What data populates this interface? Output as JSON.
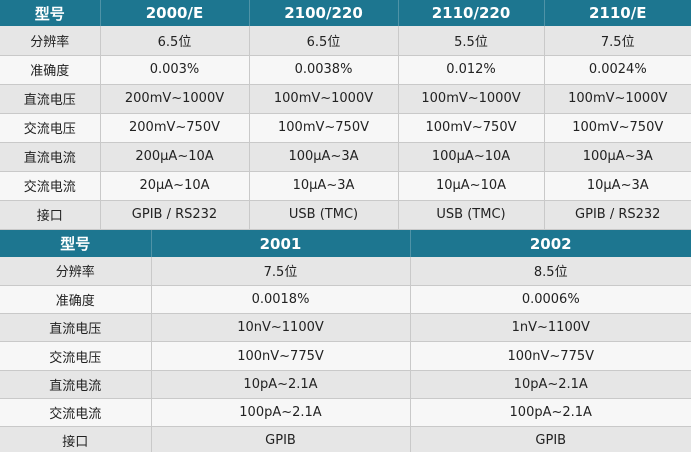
{
  "table1": {
    "headers": [
      "型号",
      "2000/E",
      "2100/220",
      "2110/220",
      "2110/E"
    ],
    "rows": [
      [
        "分辨率",
        "6.5位",
        "6.5位",
        "5.5位",
        "7.5位"
      ],
      [
        "准确度",
        "0.003%",
        "0.0038%",
        "0.012%",
        "0.0024%"
      ],
      [
        "直流电压",
        "200mV~1000V",
        "100mV~1000V",
        "100mV~1000V",
        "100mV~1000V"
      ],
      [
        "交流电压",
        "200mV~750V",
        "100mV~750V",
        "100mV~750V",
        "100mV~750V"
      ],
      [
        "直流电流",
        "200μA~10A",
        "100μA~3A",
        "100μA~10A",
        "100μA~3A"
      ],
      [
        "交流电流",
        "20μA~10A",
        "10μA~3A",
        "10μA~10A",
        "10μA~3A"
      ],
      [
        "接口",
        "GPIB / RS232",
        "USB (TMC)",
        "USB (TMC)",
        "GPIB / RS232"
      ]
    ]
  },
  "table2": {
    "headers": [
      "型号",
      "2001",
      "2002"
    ],
    "rows": [
      [
        "分辨率",
        "7.5位",
        "8.5位"
      ],
      [
        "准确度",
        "0.0018%",
        "0.0006%"
      ],
      [
        "直流电压",
        "10nV~1100V",
        "1nV~1100V"
      ],
      [
        "交流电压",
        "100nV~775V",
        "100nV~775V"
      ],
      [
        "直流电流",
        "10pA~2.1A",
        "10pA~2.1A"
      ],
      [
        "交流电流",
        "100pA~2.1A",
        "100pA~2.1A"
      ],
      [
        "接口",
        "GPIB",
        "GPIB"
      ]
    ]
  }
}
